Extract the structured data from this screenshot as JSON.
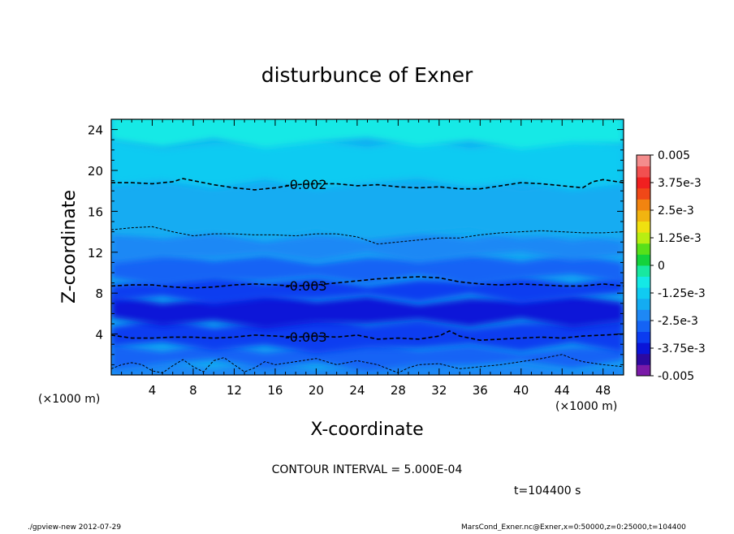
{
  "chart_data": {
    "type": "heatmap",
    "title": "disturbunce of Exner",
    "xlabel": "X-coordinate",
    "ylabel": "Z-coordinate",
    "x_unit_label": "(×1000 m)",
    "y_unit_label": "(×1000 m)",
    "xlim": [
      0,
      50
    ],
    "ylim": [
      0,
      25
    ],
    "x_ticks": [
      4,
      8,
      12,
      16,
      20,
      24,
      28,
      32,
      36,
      40,
      44,
      48
    ],
    "y_ticks": [
      4,
      8,
      12,
      16,
      20,
      24
    ],
    "x_tick_labels": [
      "4",
      "8",
      "12",
      "16",
      "20",
      "24",
      "28",
      "32",
      "36",
      "40",
      "44",
      "48"
    ],
    "y_tick_labels": [
      "4",
      "8",
      "12",
      "16",
      "20",
      "24"
    ],
    "colorbar": {
      "min": -0.005,
      "max": 0.005,
      "labels": [
        "0.005",
        "3.75e-3",
        "2.5e-3",
        "1.25e-3",
        "0",
        "-1.25e-3",
        "-2.5e-3",
        "-3.75e-3",
        "-0.005"
      ],
      "colors": [
        "#7a1aa8",
        "#2c09a0",
        "#0a14d8",
        "#0b3cf0",
        "#1463f5",
        "#1e88f5",
        "#14acf2",
        "#10cbf2",
        "#14e9e6",
        "#18e8a0",
        "#14d23c",
        "#58e01a",
        "#b8ee12",
        "#f0e010",
        "#f2b410",
        "#f28410",
        "#f04818",
        "#f02020",
        "#f25050",
        "#f48c8c"
      ]
    },
    "contours": [
      {
        "level": -0.002,
        "label": "-0.002",
        "style": "dashed",
        "x": [
          0,
          2,
          4,
          6,
          7,
          8,
          10,
          12,
          14,
          16,
          18,
          20,
          22,
          24,
          26,
          28,
          30,
          32,
          34,
          36,
          38,
          40,
          42,
          44,
          46,
          47,
          48,
          50
        ],
        "z": [
          18.8,
          18.8,
          18.7,
          18.9,
          19.2,
          19.0,
          18.6,
          18.3,
          18.1,
          18.3,
          18.6,
          18.7,
          18.7,
          18.5,
          18.6,
          18.4,
          18.3,
          18.4,
          18.2,
          18.2,
          18.5,
          18.8,
          18.7,
          18.5,
          18.3,
          18.9,
          19.1,
          18.8
        ]
      },
      {
        "level": -0.0025,
        "label": "",
        "style": "thin",
        "x": [
          0,
          2,
          4,
          6,
          8,
          10,
          12,
          14,
          16,
          18,
          20,
          22,
          24,
          26,
          28,
          30,
          32,
          34,
          36,
          38,
          40,
          42,
          44,
          46,
          48,
          50
        ],
        "z": [
          14.2,
          14.4,
          14.5,
          14.0,
          13.6,
          13.8,
          13.8,
          13.7,
          13.7,
          13.6,
          13.8,
          13.8,
          13.5,
          12.8,
          13.0,
          13.2,
          13.4,
          13.4,
          13.7,
          13.9,
          14.0,
          14.1,
          14.0,
          13.9,
          13.9,
          14.0
        ]
      },
      {
        "level": -0.003,
        "label": "-0.003",
        "style": "dashed",
        "x": [
          0,
          2,
          4,
          6,
          8,
          10,
          12,
          14,
          16,
          18,
          20,
          22,
          24,
          26,
          28,
          30,
          32,
          34,
          36,
          38,
          40,
          42,
          44,
          46,
          48,
          50
        ],
        "z": [
          8.7,
          8.8,
          8.8,
          8.6,
          8.5,
          8.6,
          8.8,
          8.9,
          8.8,
          8.7,
          8.8,
          9.0,
          9.2,
          9.4,
          9.5,
          9.6,
          9.5,
          9.1,
          8.9,
          8.8,
          8.9,
          8.8,
          8.7,
          8.7,
          8.9,
          8.7
        ]
      },
      {
        "level": -0.003,
        "label": "-0.003",
        "style": "dashed",
        "x": [
          0,
          2,
          4,
          6,
          8,
          10,
          12,
          14,
          16,
          18,
          20,
          22,
          24,
          26,
          28,
          30,
          32,
          33,
          34,
          36,
          38,
          40,
          42,
          44,
          46,
          48,
          50
        ],
        "z": [
          3.9,
          3.6,
          3.6,
          3.7,
          3.7,
          3.6,
          3.7,
          3.9,
          3.8,
          3.7,
          3.8,
          3.7,
          3.9,
          3.5,
          3.6,
          3.5,
          3.8,
          4.3,
          3.8,
          3.4,
          3.5,
          3.6,
          3.7,
          3.6,
          3.8,
          3.9,
          4.0
        ]
      },
      {
        "level": -0.0025,
        "label": "",
        "style": "thin",
        "x": [
          0,
          1,
          2,
          3,
          4,
          5,
          6,
          7,
          8,
          9,
          10,
          11,
          12,
          13,
          14,
          15,
          16,
          18,
          20,
          22,
          24,
          26,
          28,
          29,
          30,
          32,
          34,
          36,
          38,
          40,
          42,
          44,
          45,
          46,
          48,
          50
        ],
        "z": [
          0.6,
          1.0,
          1.2,
          1.0,
          0.4,
          0.2,
          0.9,
          1.5,
          0.8,
          0.3,
          1.4,
          1.7,
          1.0,
          0.3,
          0.7,
          1.3,
          1.0,
          1.3,
          1.6,
          1.0,
          1.4,
          1.0,
          0.2,
          0.7,
          1.0,
          1.1,
          0.6,
          0.8,
          1.0,
          1.3,
          1.6,
          2.0,
          1.6,
          1.3,
          1.0,
          0.8
        ]
      }
    ]
  },
  "annotations": {
    "contour_interval": "CONTOUR INTERVAL = 5.000E-04",
    "time": "t=104400 s",
    "footer_left": "./gpview-new  2012-07-29",
    "footer_right": "MarsCond_Exner.nc@Exner,x=0:50000,z=0:25000,t=104400"
  }
}
